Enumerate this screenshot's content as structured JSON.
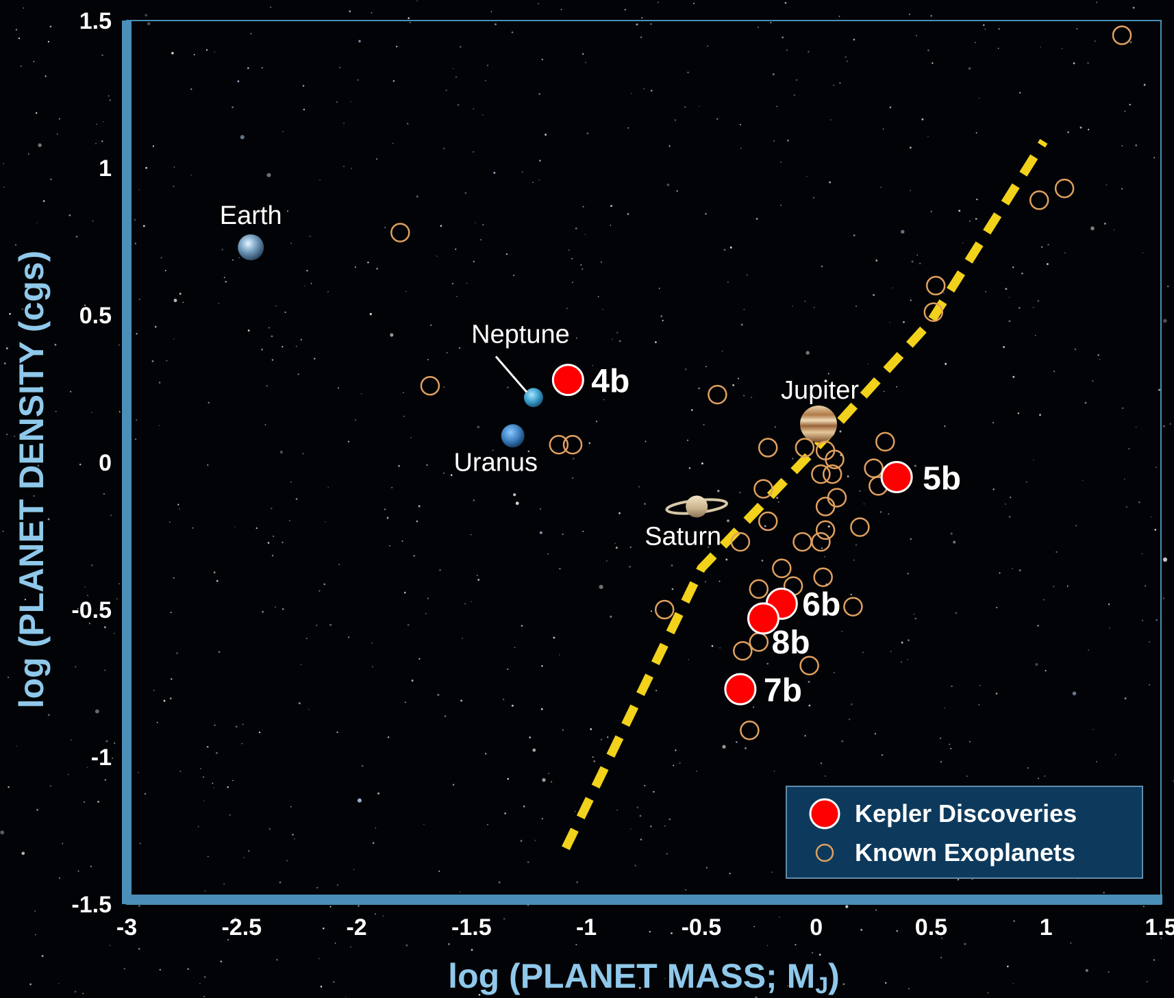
{
  "chart_data": {
    "type": "scatter",
    "title": "",
    "xlabel": "log (PLANET MASS; M",
    "xlabel_sub": "J",
    "xlabel_end": ")",
    "ylabel": "log (PLANET DENSITY (cgs)",
    "xlim": [
      -3,
      1.5
    ],
    "ylim": [
      -1.5,
      1.5
    ],
    "x_ticks": [
      "-3",
      "-2.5",
      "-2",
      "-1.5",
      "-1",
      "-0.5",
      "0",
      "0.5",
      "1",
      "1.5"
    ],
    "y_ticks": [
      "1.5",
      "1",
      "0.5",
      "0",
      "-0.5",
      "-1",
      "-1.5"
    ],
    "grid": false,
    "legend_position": "bottom-right",
    "colors": {
      "frame": "#4a8fb8",
      "kepler": "#ff0000",
      "known": "#e0a060",
      "trend": "#f2d21b",
      "legend_bg": "#0d3a5c",
      "axis_title": "#8fc8ea"
    },
    "series": [
      {
        "name": "Kepler Discoveries",
        "points": [
          {
            "label": "4b",
            "x": -1.08,
            "y": 0.28
          },
          {
            "label": "5b",
            "x": 0.35,
            "y": -0.05
          },
          {
            "label": "6b",
            "x": -0.15,
            "y": -0.48
          },
          {
            "label": "8b",
            "x": -0.23,
            "y": -0.53
          },
          {
            "label": "7b",
            "x": -0.33,
            "y": -0.77
          }
        ]
      },
      {
        "name": "Known Exoplanets",
        "points": [
          {
            "x": 1.33,
            "y": 1.45
          },
          {
            "x": 1.08,
            "y": 0.93
          },
          {
            "x": 0.97,
            "y": 0.89
          },
          {
            "x": -1.81,
            "y": 0.78
          },
          {
            "x": 0.52,
            "y": 0.6
          },
          {
            "x": 0.51,
            "y": 0.51
          },
          {
            "x": -1.68,
            "y": 0.26
          },
          {
            "x": -0.43,
            "y": 0.23
          },
          {
            "x": -1.12,
            "y": 0.06
          },
          {
            "x": -1.06,
            "y": 0.06
          },
          {
            "x": 0.3,
            "y": 0.07
          },
          {
            "x": -0.21,
            "y": 0.05
          },
          {
            "x": -0.05,
            "y": 0.05
          },
          {
            "x": 0.04,
            "y": 0.04
          },
          {
            "x": 0.08,
            "y": 0.01
          },
          {
            "x": 0.02,
            "y": -0.04
          },
          {
            "x": 0.07,
            "y": -0.04
          },
          {
            "x": 0.25,
            "y": -0.02
          },
          {
            "x": 0.27,
            "y": -0.08
          },
          {
            "x": -0.23,
            "y": -0.09
          },
          {
            "x": 0.09,
            "y": -0.12
          },
          {
            "x": 0.04,
            "y": -0.15
          },
          {
            "x": -0.21,
            "y": -0.2
          },
          {
            "x": 0.19,
            "y": -0.22
          },
          {
            "x": 0.04,
            "y": -0.23
          },
          {
            "x": -0.06,
            "y": -0.27
          },
          {
            "x": 0.02,
            "y": -0.27
          },
          {
            "x": -0.33,
            "y": -0.27
          },
          {
            "x": -0.15,
            "y": -0.36
          },
          {
            "x": 0.03,
            "y": -0.39
          },
          {
            "x": -0.25,
            "y": -0.43
          },
          {
            "x": -0.1,
            "y": -0.42
          },
          {
            "x": 0.16,
            "y": -0.49
          },
          {
            "x": -0.66,
            "y": -0.5
          },
          {
            "x": -0.25,
            "y": -0.61
          },
          {
            "x": -0.32,
            "y": -0.64
          },
          {
            "x": -0.03,
            "y": -0.69
          },
          {
            "x": -0.29,
            "y": -0.91
          }
        ]
      }
    ],
    "solar_system": [
      {
        "name": "Earth",
        "icon": "earth-icon",
        "x": -2.46,
        "y": 0.73
      },
      {
        "name": "Neptune",
        "icon": "neptune-icon",
        "x": -1.23,
        "y": 0.22
      },
      {
        "name": "Uranus",
        "icon": "uranus-icon",
        "x": -1.32,
        "y": 0.09
      },
      {
        "name": "Jupiter",
        "icon": "jupiter-icon",
        "x": 0.01,
        "y": 0.13
      },
      {
        "name": "Saturn",
        "icon": "saturn-icon",
        "x": -0.52,
        "y": -0.15
      }
    ],
    "trend_line": [
      {
        "x": -1.09,
        "y": -1.31
      },
      {
        "x": -0.5,
        "y": -0.36
      },
      {
        "x": 0.0,
        "y": 0.05
      },
      {
        "x": 0.5,
        "y": 0.48
      },
      {
        "x": 0.99,
        "y": 1.09
      }
    ]
  }
}
